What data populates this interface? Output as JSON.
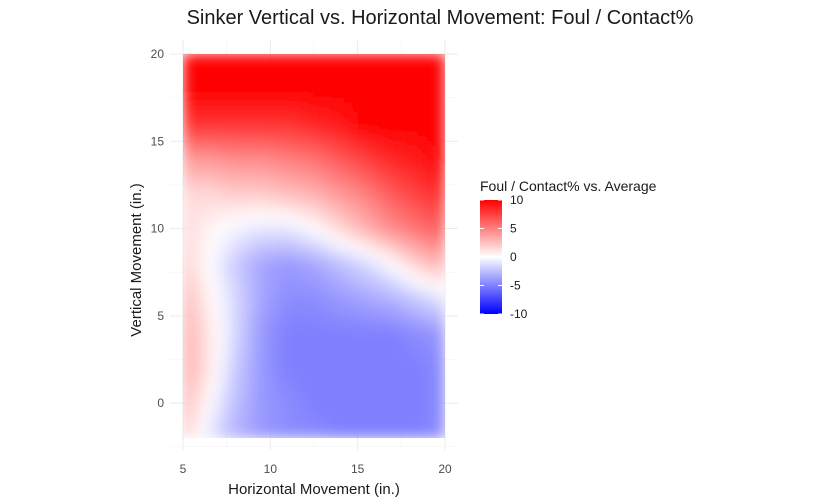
{
  "chart_data": {
    "type": "heatmap",
    "title": "Sinker Vertical vs. Horizontal Movement: Foul / Contact%",
    "xlabel": "Horizontal Movement (in.)",
    "ylabel": "Vertical Movement (in.)",
    "xlim": [
      5,
      20
    ],
    "ylim": [
      -2,
      20
    ],
    "x_ticks": [
      "5",
      "10",
      "15",
      "20"
    ],
    "y_ticks": [
      "0",
      "5",
      "10",
      "15",
      "20"
    ],
    "x_tick_values": [
      5,
      10,
      15,
      20
    ],
    "y_tick_values": [
      0,
      5,
      10,
      15,
      20
    ],
    "grid": true,
    "legend": {
      "title": "Foul / Contact% vs. Average",
      "placement": "right",
      "range": [
        -10,
        10
      ],
      "ticks": [
        "10",
        "5",
        "0",
        "-5",
        "-10"
      ],
      "tick_values": [
        10,
        5,
        0,
        -5,
        -10
      ],
      "colors": {
        "low": "#0000ff",
        "mid": "#ffffff",
        "high": "#ff0000"
      }
    },
    "x": [
      5,
      6.5,
      8,
      9.5,
      11,
      12.5,
      14,
      15.5,
      17,
      18.5,
      20
    ],
    "y": [
      -2,
      0,
      2,
      4,
      6,
      8,
      10,
      12,
      14,
      16,
      18,
      20
    ],
    "z": [
      [
        2,
        -1,
        -3,
        -4,
        -4.5,
        -4.5,
        -5,
        -5,
        -5,
        -5,
        -4.5
      ],
      [
        3,
        0,
        -2.5,
        -4,
        -4.5,
        -5,
        -5,
        -5,
        -5,
        -5,
        -4.5
      ],
      [
        3.5,
        1,
        -2,
        -4,
        -5,
        -5,
        -5,
        -5,
        -5,
        -5,
        -4.5
      ],
      [
        3.5,
        1,
        -1.5,
        -4,
        -5,
        -5,
        -5,
        -5,
        -5,
        -4.5,
        -4
      ],
      [
        3,
        0.5,
        -1.5,
        -3.5,
        -4.5,
        -4.5,
        -4,
        -3.5,
        -3,
        -2,
        -1
      ],
      [
        2,
        0,
        -2,
        -3.5,
        -4,
        -3.5,
        -2.5,
        -1.5,
        0,
        2,
        3
      ],
      [
        1.5,
        0.5,
        -0.5,
        -1,
        -1,
        0,
        1.5,
        3,
        4.5,
        5.5,
        6.5
      ],
      [
        1.5,
        1.5,
        2,
        2,
        2.5,
        3,
        4,
        5,
        6.5,
        7.5,
        8.5
      ],
      [
        4,
        4,
        4.5,
        4.5,
        5,
        5.5,
        6.5,
        7.5,
        8.5,
        9,
        10
      ],
      [
        8,
        8,
        8,
        8,
        8,
        8.5,
        9,
        10,
        10,
        10,
        10
      ],
      [
        10,
        10,
        10,
        10,
        10,
        10,
        10,
        10,
        10,
        10,
        10
      ],
      [
        10,
        10,
        10,
        10,
        10,
        10,
        10,
        10,
        10,
        10,
        10
      ]
    ]
  }
}
